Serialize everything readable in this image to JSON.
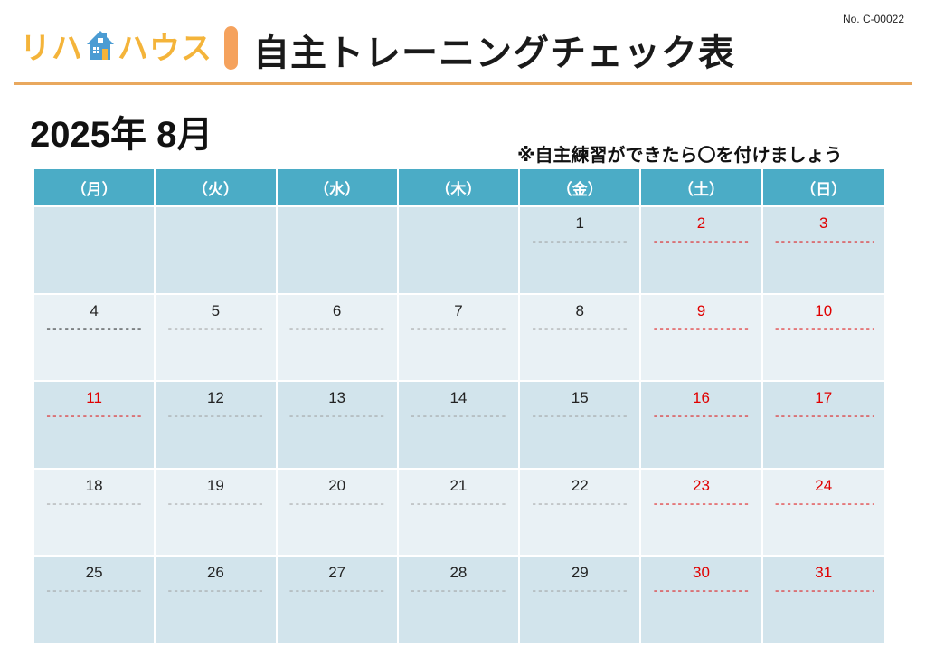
{
  "header": {
    "logo_text_1": "リハ",
    "logo_text_2": "ハウス",
    "title": "自主トレーニングチェック表",
    "doc_number": "No. C-00022",
    "month": "2025年 8月",
    "note": "※自主練習ができたら〇を付けましょう"
  },
  "colors": {
    "accent": "#F5A25D",
    "logo": "#F4B43A",
    "header_cell": "#4BACC6",
    "row_dark": "#D2E4EC",
    "row_light": "#E9F1F5",
    "holiday": "#E00000"
  },
  "calendar": {
    "weekdays": [
      "（月）",
      "（火）",
      "（水）",
      "（木）",
      "（金）",
      "（土）",
      "（日）"
    ],
    "dash_line": "-----------------",
    "weeks": [
      [
        {
          "day": "",
          "red": false
        },
        {
          "day": "",
          "red": false
        },
        {
          "day": "",
          "red": false
        },
        {
          "day": "",
          "red": false
        },
        {
          "day": "1",
          "red": false
        },
        {
          "day": "2",
          "red": true
        },
        {
          "day": "3",
          "red": true
        }
      ],
      [
        {
          "day": "4",
          "red": false,
          "dark": true
        },
        {
          "day": "5",
          "red": false
        },
        {
          "day": "6",
          "red": false
        },
        {
          "day": "7",
          "red": false
        },
        {
          "day": "8",
          "red": false
        },
        {
          "day": "9",
          "red": true
        },
        {
          "day": "10",
          "red": true
        }
      ],
      [
        {
          "day": "11",
          "red": true
        },
        {
          "day": "12",
          "red": false
        },
        {
          "day": "13",
          "red": false
        },
        {
          "day": "14",
          "red": false
        },
        {
          "day": "15",
          "red": false
        },
        {
          "day": "16",
          "red": true
        },
        {
          "day": "17",
          "red": true
        }
      ],
      [
        {
          "day": "18",
          "red": false
        },
        {
          "day": "19",
          "red": false
        },
        {
          "day": "20",
          "red": false
        },
        {
          "day": "21",
          "red": false
        },
        {
          "day": "22",
          "red": false
        },
        {
          "day": "23",
          "red": true
        },
        {
          "day": "24",
          "red": true
        }
      ],
      [
        {
          "day": "25",
          "red": false
        },
        {
          "day": "26",
          "red": false
        },
        {
          "day": "27",
          "red": false
        },
        {
          "day": "28",
          "red": false
        },
        {
          "day": "29",
          "red": false
        },
        {
          "day": "30",
          "red": true
        },
        {
          "day": "31",
          "red": true
        }
      ]
    ]
  }
}
